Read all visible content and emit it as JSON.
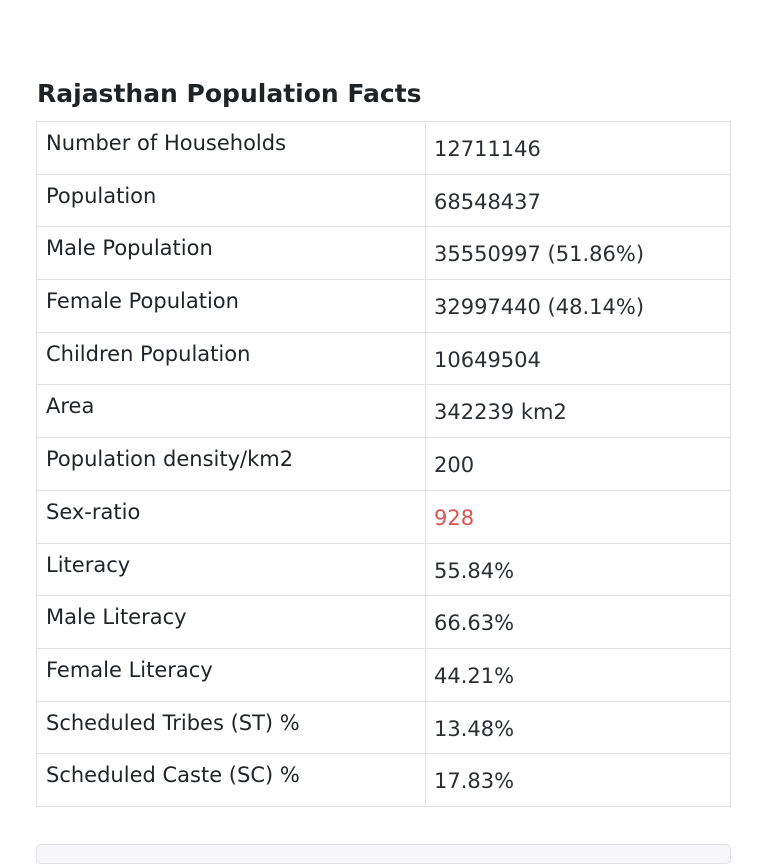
{
  "section": {
    "title": "Rajasthan Population Facts"
  },
  "facts": {
    "rows": [
      {
        "label": "Number of Households",
        "value": "12711146"
      },
      {
        "label": "Population",
        "value": "68548437"
      },
      {
        "label": "Male Population",
        "value": "35550997 (51.86%)"
      },
      {
        "label": "Female Population",
        "value": "32997440 (48.14%)"
      },
      {
        "label": "Children Population",
        "value": "10649504"
      },
      {
        "label": "Area",
        "value": "342239 km2"
      },
      {
        "label": "Population density/km2",
        "value": "200"
      },
      {
        "label": "Sex-ratio",
        "value": "928"
      },
      {
        "label": "Literacy",
        "value": "55.84%"
      },
      {
        "label": "Male Literacy",
        "value": "66.63%"
      },
      {
        "label": "Female Literacy",
        "value": "44.21%"
      },
      {
        "label": "Scheduled Tribes (ST) %",
        "value": "13.48%"
      },
      {
        "label": "Scheduled Caste (SC) %",
        "value": "17.83%"
      }
    ],
    "highlight_color": "#d9534f"
  }
}
